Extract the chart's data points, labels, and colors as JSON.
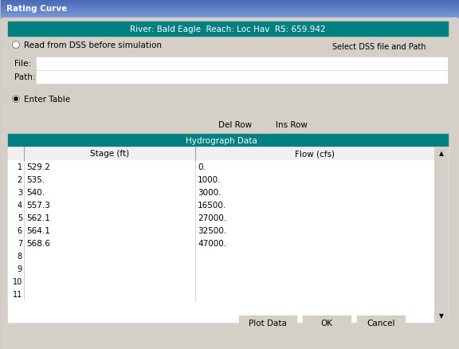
{
  "title": "Rating Curve",
  "header_text": "River: Bald Eagle  Reach: Loc Hav  RS: 659.942",
  "header_bg": "#008080",
  "header_fg": "#FFFFFF",
  "dialog_bg": "#ECE9D8",
  "radio1_text": "Read from DSS before simulation",
  "radio2_text": "Enter Table",
  "btn_select_dss": "Select DSS file and Path",
  "file_label": "File:",
  "path_label": "Path:",
  "btn_del_row": "Del Row",
  "btn_ins_row": "Ins Row",
  "table_header": "Hydrograph Data",
  "col1_header": "Stage (ft)",
  "col2_header": "Flow (cfs)",
  "rows": [
    [
      "1",
      "529.2",
      "0."
    ],
    [
      "2",
      "535.",
      "1000."
    ],
    [
      "3",
      "540.",
      "3000."
    ],
    [
      "4",
      "557.3",
      "16500."
    ],
    [
      "5",
      "562.1",
      "27000."
    ],
    [
      "6",
      "564.1",
      "32500."
    ],
    [
      "7",
      "568.6",
      "47000."
    ],
    [
      "8",
      "",
      ""
    ],
    [
      "9",
      "",
      ""
    ],
    [
      "10",
      "",
      ""
    ],
    [
      "11",
      "",
      ""
    ]
  ],
  "btn_plot": "Plot Data",
  "btn_ok": "OK",
  "btn_cancel": "Cancel",
  "title_bar_color1": "#6080C0",
  "title_bar_color2": "#3050A0",
  "outer_border": "#6080C8",
  "titlebar_text_color": "#FFFFFF"
}
